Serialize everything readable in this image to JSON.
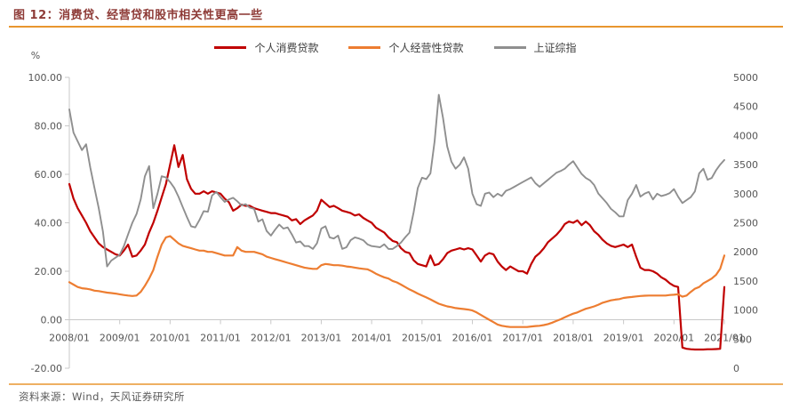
{
  "page": {
    "figure_title": "图 12：消费贷、经营贷和股市相关性更高一些",
    "source_note": "资料来源：Wind，天风证券研究所"
  },
  "colors": {
    "title_text": "#8E3B37",
    "accent_rule": "#E8962E",
    "consumer_loans": "#C00000",
    "business_loans": "#ED7D31",
    "sse_index": "#8F8F8F",
    "axis_line": "#C9C9C9",
    "tick_text": "#565656"
  },
  "legend": {
    "items": [
      {
        "label": "个人消费贷款"
      },
      {
        "label": "个人经营性贷款"
      },
      {
        "label": "上证综指"
      }
    ]
  },
  "axes": {
    "left_unit": "%",
    "left_ticks": [
      "100.00",
      "80.00",
      "60.00",
      "40.00",
      "20.00",
      "0.00",
      "-20.00"
    ],
    "right_ticks": [
      "5000",
      "4500",
      "4000",
      "3500",
      "3000",
      "2500",
      "2000",
      "1500",
      "1000",
      "500",
      "0"
    ],
    "x_ticks": [
      "2008/01",
      "2009/01",
      "2010/01",
      "2011/01",
      "2012/01",
      "2013/01",
      "2014/01",
      "2015/01",
      "2016/01",
      "2017/01",
      "2018/01",
      "2019/01",
      "2020/01",
      "2021/01"
    ]
  },
  "chart_data": {
    "type": "line",
    "title": "图 12：消费贷、经营贷和股市相关性更高一些",
    "x_start": "2008/01",
    "x_end": "2021/01",
    "x_interval": "monthly",
    "legend_position": "top",
    "grid": false,
    "left_axis": {
      "label": "%",
      "min": -20,
      "max": 100,
      "tick_step": 20
    },
    "right_axis": {
      "min": 0,
      "max": 5000,
      "tick_step": 500
    },
    "series": [
      {
        "name": "个人消费贷款",
        "key": "consumer-loans",
        "axis": "left",
        "unit": "%",
        "color": "#C00000",
        "values": [
          56,
          50,
          46,
          43,
          40,
          36.5,
          34,
          31.5,
          30,
          29,
          28,
          27,
          26.5,
          28.5,
          31,
          26,
          26.5,
          28.5,
          31,
          36,
          40,
          45,
          50.5,
          56,
          64,
          72,
          63,
          68,
          58,
          54,
          52,
          52,
          53,
          52,
          53,
          52.5,
          52,
          50,
          48.5,
          45,
          46,
          47.5,
          47,
          47,
          46,
          45.5,
          45,
          44.5,
          44,
          44,
          43.5,
          43,
          42.5,
          41,
          41.5,
          39.5,
          41,
          42,
          43,
          45,
          49.5,
          48,
          46.5,
          47,
          46,
          45,
          44.5,
          44,
          43,
          43.5,
          42,
          41,
          40,
          38,
          37,
          36,
          34,
          32.5,
          32,
          29.5,
          28,
          27.5,
          24.5,
          23,
          22.5,
          22,
          26.5,
          22.5,
          23,
          25,
          27.5,
          28.5,
          29,
          29.5,
          29,
          29.5,
          29,
          26.5,
          24,
          26.5,
          27.5,
          27,
          24,
          22,
          20.5,
          22,
          21,
          20,
          20,
          19,
          23,
          26,
          27.5,
          29.5,
          32,
          33.5,
          35,
          37,
          39.5,
          40.5,
          40,
          41,
          39,
          40.5,
          39,
          36.5,
          35,
          33,
          31.5,
          30.5,
          30,
          30.5,
          31,
          30,
          31,
          26,
          21.5,
          20.5,
          20.5,
          20,
          19,
          17.5,
          16.5,
          15,
          14,
          13.5,
          -11.5,
          -12,
          -12.2,
          -12.3,
          -12.3,
          -12.3,
          -12.2,
          -12.2,
          -12.1,
          -12,
          13.5
        ]
      },
      {
        "name": "个人经营性贷款",
        "key": "business-loans",
        "axis": "left",
        "unit": "%",
        "color": "#ED7D31",
        "values": [
          15.5,
          14.5,
          13.5,
          13,
          12.8,
          12.5,
          12,
          11.8,
          11.5,
          11.2,
          11,
          10.8,
          10.5,
          10.2,
          10,
          9.8,
          10,
          11.5,
          14,
          17,
          20.5,
          26,
          31,
          34,
          34.5,
          33,
          31.5,
          30.5,
          30,
          29.5,
          29,
          28.5,
          28.5,
          28,
          28,
          27.5,
          27,
          26.5,
          26.5,
          26.5,
          30,
          28.5,
          28,
          28,
          28,
          27.5,
          27,
          26,
          25.5,
          25,
          24.5,
          24,
          23.5,
          23,
          22.5,
          22,
          21.5,
          21.2,
          21,
          21,
          22.5,
          23,
          22.8,
          22.5,
          22.5,
          22.3,
          22,
          21.8,
          21.5,
          21.2,
          21,
          20.8,
          20,
          19,
          18.2,
          17.5,
          17,
          16,
          15.4,
          14.5,
          13.5,
          12.5,
          11.7,
          10.8,
          10,
          9.2,
          8.4,
          7.5,
          6.6,
          6,
          5.5,
          5.2,
          4.8,
          4.6,
          4.4,
          4.2,
          3.8,
          3,
          2,
          1,
          0,
          -1,
          -2,
          -2.5,
          -2.8,
          -3,
          -3,
          -3,
          -3,
          -3,
          -2.8,
          -2.6,
          -2.5,
          -2.2,
          -1.8,
          -1.2,
          -0.5,
          0.2,
          1,
          1.8,
          2.5,
          3,
          3.8,
          4.5,
          5,
          5.5,
          6.2,
          7,
          7.5,
          8,
          8.3,
          8.5,
          9,
          9.2,
          9.4,
          9.6,
          9.8,
          9.9,
          10,
          10,
          10,
          10,
          10,
          10.2,
          10.3,
          10.5,
          9.5,
          10,
          11.5,
          12.8,
          13.5,
          15,
          16,
          17,
          18.5,
          21,
          26.5
        ]
      },
      {
        "name": "上证综指",
        "key": "sse-index",
        "axis": "right",
        "unit": "point",
        "color": "#8F8F8F",
        "values": [
          4450,
          4050,
          3900,
          3750,
          3850,
          3450,
          3100,
          2750,
          2350,
          1750,
          1850,
          1900,
          1950,
          2100,
          2300,
          2500,
          2650,
          2900,
          3300,
          3475,
          2750,
          3000,
          3300,
          3280,
          3200,
          3100,
          2950,
          2770,
          2600,
          2440,
          2420,
          2550,
          2700,
          2690,
          2970,
          3030,
          2940,
          2860,
          2900,
          2930,
          2870,
          2800,
          2820,
          2760,
          2740,
          2520,
          2560,
          2360,
          2280,
          2380,
          2470,
          2400,
          2420,
          2300,
          2160,
          2180,
          2100,
          2100,
          2050,
          2150,
          2400,
          2440,
          2250,
          2230,
          2280,
          2050,
          2080,
          2200,
          2250,
          2230,
          2200,
          2130,
          2100,
          2090,
          2080,
          2130,
          2050,
          2050,
          2100,
          2160,
          2250,
          2330,
          2680,
          3100,
          3275,
          3250,
          3350,
          3900,
          4700,
          4300,
          3810,
          3550,
          3430,
          3500,
          3625,
          3430,
          3000,
          2820,
          2790,
          3000,
          3020,
          2940,
          3000,
          2960,
          3050,
          3080,
          3120,
          3160,
          3200,
          3240,
          3280,
          3180,
          3120,
          3180,
          3240,
          3300,
          3360,
          3390,
          3430,
          3500,
          3560,
          3450,
          3340,
          3270,
          3230,
          3150,
          3000,
          2920,
          2840,
          2740,
          2680,
          2610,
          2610,
          2890,
          3000,
          3150,
          2950,
          3000,
          3030,
          2900,
          3000,
          2960,
          2980,
          3010,
          3080,
          2950,
          2840,
          2890,
          2940,
          3040,
          3350,
          3430,
          3240,
          3270,
          3400,
          3500,
          3580
        ]
      }
    ]
  }
}
